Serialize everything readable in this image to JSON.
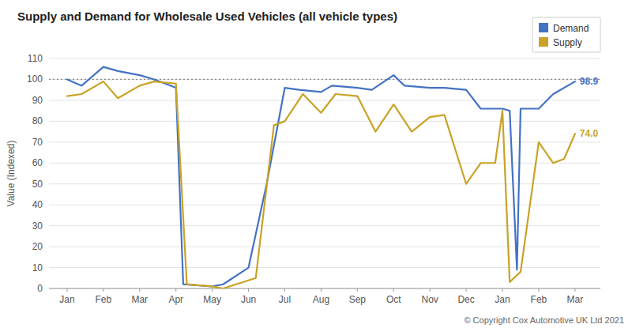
{
  "chart_data": {
    "type": "line",
    "title": "Supply and Demand for Wholesale Used Vehicles (all vehicle types)",
    "ylabel": "Value (Indexed)",
    "caption": "© Copyright Cox Automotive UK Ltd 2021",
    "xlim": [
      -0.5,
      14.7
    ],
    "xticks": [
      {
        "value": 0,
        "label": "Jan"
      },
      {
        "value": 1,
        "label": "Feb"
      },
      {
        "value": 2,
        "label": "Mar"
      },
      {
        "value": 3,
        "label": "Apr"
      },
      {
        "value": 4,
        "label": "May"
      },
      {
        "value": 5,
        "label": "Jun"
      },
      {
        "value": 6,
        "label": "Jul"
      },
      {
        "value": 7,
        "label": "Aug"
      },
      {
        "value": 8,
        "label": "Sep"
      },
      {
        "value": 9,
        "label": "Oct"
      },
      {
        "value": 10,
        "label": "Nov"
      },
      {
        "value": 11,
        "label": "Dec"
      },
      {
        "value": 12,
        "label": "Jan"
      },
      {
        "value": 13,
        "label": "Feb"
      },
      {
        "value": 14,
        "label": "Mar"
      }
    ],
    "ylim": [
      0,
      110
    ],
    "yticks": [
      0,
      10,
      20,
      30,
      40,
      50,
      60,
      70,
      80,
      90,
      100,
      110
    ],
    "hline": 100,
    "grid": true,
    "legend": "upper right",
    "annotations": [
      "98.9",
      "74.0"
    ],
    "series": [
      {
        "name": "Demand",
        "color": "#4472C4",
        "x": [
          0,
          0.4,
          1.0,
          1.4,
          2.0,
          2.4,
          3.0,
          3.2,
          4.0,
          4.3,
          5.0,
          5.5,
          6.0,
          6.4,
          7.0,
          7.3,
          8.0,
          8.4,
          9.0,
          9.3,
          10.0,
          10.4,
          11.0,
          11.4,
          12.0,
          12.2,
          12.4,
          12.5,
          13.0,
          13.4,
          14.0
        ],
        "values": [
          100,
          97,
          106,
          104,
          102,
          100,
          96,
          2,
          1,
          2,
          10,
          50,
          96,
          95,
          94,
          97,
          96,
          95,
          102,
          97,
          96,
          96,
          95,
          86,
          86,
          85,
          9,
          86,
          86,
          93,
          99
        ]
      },
      {
        "name": "Supply",
        "color": "#C9A227",
        "x": [
          0,
          0.4,
          1.0,
          1.4,
          2.0,
          2.4,
          3.0,
          3.3,
          4.0,
          4.3,
          5.2,
          5.7,
          6.0,
          6.5,
          7.0,
          7.4,
          8.0,
          8.5,
          9.0,
          9.5,
          10.0,
          10.4,
          11.0,
          11.4,
          11.8,
          12.0,
          12.2,
          12.5,
          13.0,
          13.4,
          13.7,
          14.0
        ],
        "values": [
          92,
          93,
          99,
          91,
          97,
          99,
          98,
          2,
          1,
          0,
          5,
          78,
          80,
          93,
          84,
          93,
          92,
          75,
          88,
          75,
          82,
          83,
          50,
          60,
          60,
          85,
          3,
          8,
          70,
          60,
          62,
          74
        ]
      }
    ]
  }
}
